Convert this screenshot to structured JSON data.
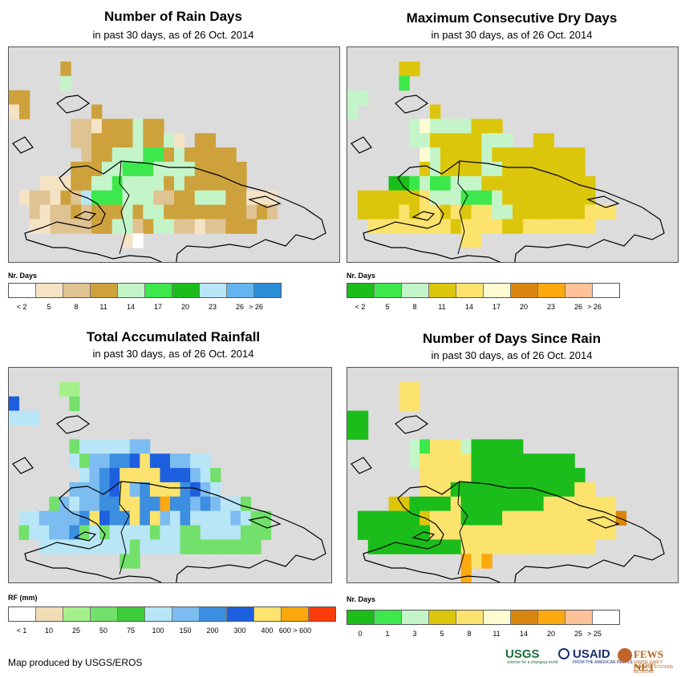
{
  "credit": "Map produced by USGS/EROS",
  "logos": {
    "usgs": "USGS",
    "usgs_tagline": "science for a changing world",
    "usaid": "USAID",
    "usaid_tagline": "FROM THE AMERICAN PEOPLE",
    "fews": "FEWS NET",
    "fews_tagline": "FAMINE EARLY WARNING SYSTEMS NETWORK"
  },
  "panels": [
    {
      "id": "rain-days",
      "title": "Number of Rain Days",
      "subtitle": "in past 30 days, as of 26 Oct. 2014",
      "legend_title": "Nr. Days",
      "legend_colors": [
        "#ffffff",
        "#f5e3c6",
        "#e0c393",
        "#cda23c",
        "#c4f5c9",
        "#3ce84b",
        "#1bbd1b",
        "#b8e6f7",
        "#63b4ef",
        "#2a8ed6"
      ],
      "legend_labels": [
        "< 2",
        "5",
        "8",
        "11",
        "14",
        "17",
        "20",
        "23",
        "26",
        "> 26"
      ]
    },
    {
      "id": "dry-days",
      "title": "Maximum Consecutive Dry Days",
      "subtitle": "in past 30 days, as of 26 Oct. 2014",
      "legend_title": "",
      "legend_colors": [
        "#1bbd1b",
        "#3ce84b",
        "#c4f5c9",
        "#dcc60c",
        "#fbe36e",
        "#fefbd0",
        "#d9860f",
        "#fca80f",
        "#fdc298",
        "#ffffff"
      ],
      "legend_labels": [
        "< 2",
        "5",
        "8",
        "11",
        "14",
        "17",
        "20",
        "23",
        "26",
        "> 26"
      ]
    },
    {
      "id": "rainfall",
      "title": "Total Accumulated Rainfall",
      "subtitle": "in past 30 days, as of 26 Oct. 2014",
      "legend_title": "RF (mm)",
      "legend_colors": [
        "#ffffff",
        "#f0dcb5",
        "#a6f08c",
        "#72e06a",
        "#3ccc3c",
        "#b8e6f7",
        "#7cbcf0",
        "#3c8ee0",
        "#1e5fe0",
        "#fbe36e",
        "#fca80f",
        "#fb3c0a"
      ],
      "legend_labels": [
        "< 1",
        "10",
        "25",
        "50",
        "75",
        "100",
        "150",
        "200",
        "300",
        "400",
        "600 > 600"
      ]
    },
    {
      "id": "since-rain",
      "title": "Number of Days Since Rain",
      "subtitle": "in past 30 days, as of 26 Oct. 2014",
      "legend_title": "Nr. Days",
      "legend_colors": [
        "#1bbd1b",
        "#3ce84b",
        "#c4f5c9",
        "#dcc60c",
        "#fbe36e",
        "#fefbd0",
        "#d9860f",
        "#fca80f",
        "#fdc298",
        "#ffffff"
      ],
      "legend_labels": [
        "0",
        "1",
        "3",
        "5",
        "8",
        "11",
        "14",
        "20",
        "25",
        "> 25"
      ]
    }
  ],
  "maps": {
    "rain-days": {
      "palette": [
        "#dcdcdc",
        "#f5e3c6",
        "#e0c393",
        "#cda23c",
        "#c4f5c9",
        "#3ce84b",
        "#1bbd1b",
        "#b8e6f7",
        "#ffffff"
      ],
      "grid": [
        "00000000000000000000000000000000",
        "00000300000000000000000000000000",
        "00000400000000000000000000000000",
        "33000000000000000000000000000000",
        "13000000300000000000000000000000",
        "0000002213334330000000000000000",
        "00000022333343341033000000000000",
        "00000002334445534333330000000000",
        "00000033344555444433333000000000",
        "00011133445444434333333000000000",
        "0122132755544422334443311100000",
        "00212232333434433333333232000000",
        "0011222233442344221223330000000",
        "00000000000180000000000000000000",
        "00000000000000000000000000000000"
      ]
    },
    "dry-days": {
      "palette": [
        "#dcdcdc",
        "#1bbd1b",
        "#3ce84b",
        "#c4f5c9",
        "#dcc60c",
        "#fbe36e",
        "#fefbd0"
      ],
      "grid": [
        "00000000000000000000000000000000",
        "00000440000000000000000000000000",
        "00000200000000000000000000000000",
        "33000000000000000000000000000000",
        "30000000400000000000000000000000",
        "00000036333344400000000000000000",
        "00000033444443330044000000000000",
        "00000006344443444444444000000000",
        "00000004344443344444444000000000",
        "00001123223334444444444400000000",
        "04444445333222344444444400000000",
        "04444545545455334444444555000000",
        "00555555554555544555555500000000",
        "00000000000550000000000000000000",
        "00000000000000000000000000000000"
      ]
    },
    "rainfall": {
      "palette": [
        "#dcdcdc",
        "#a6f08c",
        "#72e06a",
        "#b8e6f7",
        "#7cbcf0",
        "#3c8ee0",
        "#1e5fe0",
        "#fbe36e",
        "#fca80f",
        "#3ccc3c"
      ],
      "grid": [
        "00000000000000000000000000000000",
        "00000110000000000000000000000000",
        "60000020000000000000000000000000",
        "33300000000000000000000000000000",
        "00000000000000000000000000000000",
        "00000023333344000000000000000000",
        "00000032445567664433000000000000",
        "00000003456777766643200000000000",
        "00000044456745777564300000000000",
        "00002434455775585545433200000000",
        "03344445765575743533334322000000",
        "02334452323333233223333222000000",
        "00033333333323333222222220000000",
        "00000000000220000000000000000000",
        "00000000000000000000000000000000"
      ]
    },
    "since-rain": {
      "palette": [
        "#dcdcdc",
        "#1bbd1b",
        "#3ce84b",
        "#c4f5c9",
        "#dcc60c",
        "#fbe36e",
        "#fca80f",
        "#d9860f"
      ],
      "grid": [
        "00000000000000000000000000000000",
        "00000550000000000000000000000000",
        "00000550000000000000000000000000",
        "11000000000000000000000000000000",
        "11000000000000000000000000000000",
        "00000032555311111000000000000000",
        "00000035555511111111110000000000",
        "00000005555511111111111000000000",
        "00000005551111111111115500000000",
        "00004411115111111115555555000000",
        "01111114555111155555555555700000",
        "01111111555555555555555555000000",
        "00111111111555555555555500000000",
        "00000000000656000000000000000000",
        "00000000000600000000000000000000"
      ]
    }
  }
}
